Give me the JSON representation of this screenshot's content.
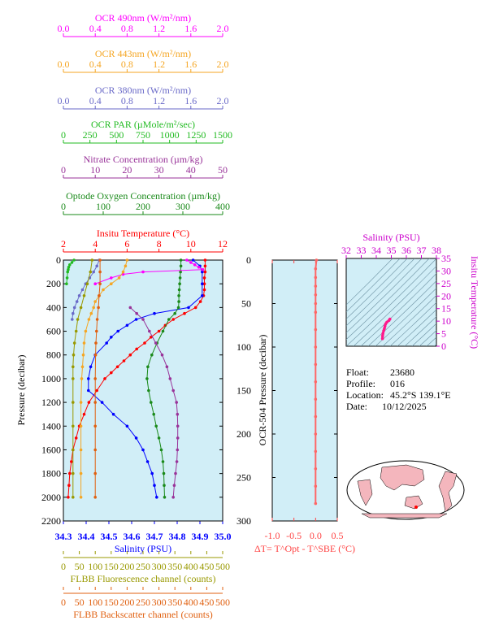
{
  "chart_data": [
    {
      "type": "line",
      "title": "",
      "ylabel": "Pressure (decibar)",
      "y_ticks": [
        "0",
        "200",
        "400",
        "600",
        "800",
        "1000",
        "1200",
        "1400",
        "1600",
        "1800",
        "2000",
        "2200"
      ],
      "ylim": [
        2200,
        0
      ],
      "background": "#d1eef7",
      "grid": false,
      "top_axes": [
        {
          "label": "OCR 490nm (W/m²/nm)",
          "color": "#ff00ff",
          "ticks": [
            "0.0",
            "0.4",
            "0.8",
            "1.2",
            "1.6",
            "2.0"
          ],
          "range": [
            0,
            2
          ]
        },
        {
          "label": "OCR 443nm (W/m²/nm)",
          "color": "#f5a623",
          "ticks": [
            "0.0",
            "0.4",
            "0.8",
            "1.2",
            "1.6",
            "2.0"
          ],
          "range": [
            0,
            2
          ]
        },
        {
          "label": "OCR 380nm (W/m²/nm)",
          "color": "#6a6ac8",
          "ticks": [
            "0.0",
            "0.4",
            "0.8",
            "1.2",
            "1.6",
            "2.0"
          ],
          "range": [
            0,
            2
          ]
        },
        {
          "label": "OCR PAR (µMole/m²/sec)",
          "color": "#22bb22",
          "ticks": [
            "0",
            "250",
            "500",
            "750",
            "1000",
            "1250",
            "1500"
          ],
          "range": [
            0,
            1500
          ]
        },
        {
          "label": "Nitrate Concentration (µm/kg)",
          "color": "#993399",
          "ticks": [
            "0",
            "10",
            "20",
            "30",
            "40",
            "50"
          ],
          "range": [
            0,
            50
          ]
        },
        {
          "label": "Optode Oxygen Concentration (µm/kg)",
          "color": "#1a8a1a",
          "ticks": [
            "0",
            "100",
            "200",
            "300",
            "400"
          ],
          "range": [
            0,
            400
          ]
        },
        {
          "label": "Insitu Temperature (°C)",
          "color": "#ff0000",
          "ticks": [
            "2",
            "4",
            "6",
            "8",
            "10",
            "12"
          ],
          "range": [
            2,
            12
          ]
        }
      ],
      "bottom_axes": [
        {
          "label": "Salinity (PSU)",
          "color": "#0000ff",
          "ticks": [
            "34.3",
            "34.4",
            "34.5",
            "34.6",
            "34.7",
            "34.8",
            "34.9",
            "35.0"
          ],
          "range": [
            34.3,
            35.0
          ]
        },
        {
          "label": "FLBB Fluorescence channel (counts)",
          "color": "#999900",
          "ticks": [
            "0",
            "50",
            "100",
            "150",
            "200",
            "250",
            "300",
            "350",
            "400",
            "450",
            "500"
          ],
          "range": [
            0,
            500
          ]
        },
        {
          "label": "FLBB Backscatter channel (counts)",
          "color": "#e06010",
          "ticks": [
            "0",
            "50",
            "100",
            "150",
            "200",
            "250",
            "300",
            "350",
            "400",
            "450",
            "500"
          ],
          "range": [
            0,
            500
          ]
        }
      ],
      "series": [
        {
          "name": "Insitu Temperature",
          "color": "#ff0000",
          "axis": "Insitu Temperature (°C)",
          "p": [
            0,
            50,
            100,
            150,
            200,
            250,
            300,
            350,
            400,
            450,
            500,
            550,
            600,
            650,
            700,
            750,
            800,
            850,
            900,
            950,
            1000,
            1100,
            1200,
            1300,
            1400,
            1500,
            1600,
            1700,
            1800,
            1900,
            2000
          ],
          "v": [
            10.9,
            10.9,
            10.9,
            10.85,
            10.85,
            10.85,
            10.8,
            10.6,
            10.3,
            9.6,
            8.9,
            8.4,
            8.0,
            7.5,
            7.1,
            6.6,
            6.2,
            5.8,
            5.4,
            5.0,
            4.6,
            4.1,
            3.6,
            3.3,
            3.0,
            2.8,
            2.6,
            2.5,
            2.4,
            2.35,
            2.3
          ]
        },
        {
          "name": "Salinity",
          "color": "#0000ff",
          "axis": "Salinity (PSU)",
          "p": [
            0,
            50,
            100,
            200,
            300,
            400,
            450,
            500,
            550,
            600,
            650,
            700,
            800,
            900,
            1000,
            1100,
            1200,
            1300,
            1400,
            1500,
            1600,
            1700,
            1800,
            1900,
            2000
          ],
          "v": [
            34.87,
            34.9,
            34.91,
            34.91,
            34.91,
            34.85,
            34.7,
            34.62,
            34.58,
            34.54,
            34.51,
            34.49,
            34.44,
            34.42,
            34.41,
            34.41,
            34.47,
            34.52,
            34.58,
            34.62,
            34.65,
            34.67,
            34.69,
            34.7,
            34.71
          ]
        },
        {
          "name": "Optode Oxygen Concentration",
          "color": "#1a8a1a",
          "axis": "Optode Oxygen Concentration (µm/kg)",
          "p": [
            0,
            50,
            100,
            150,
            200,
            250,
            300,
            350,
            400,
            450,
            500,
            600,
            700,
            800,
            900,
            1000,
            1100,
            1200,
            1300,
            1400,
            1500,
            1600,
            1700,
            1800,
            1900,
            2000
          ],
          "v": [
            295,
            295,
            294,
            293,
            292,
            291,
            290,
            290,
            289,
            280,
            265,
            250,
            235,
            222,
            212,
            210,
            214,
            220,
            227,
            233,
            240,
            246,
            250,
            252,
            253,
            254
          ]
        },
        {
          "name": "Nitrate Concentration",
          "color": "#993399",
          "axis": "Nitrate Concentration (µm/kg)",
          "p": [
            400,
            450,
            500,
            600,
            700,
            800,
            900,
            1000,
            1100,
            1200,
            1300,
            1400,
            1500,
            1600,
            1700,
            1800,
            1900,
            2000
          ],
          "v": [
            21,
            23,
            25,
            27,
            29,
            31,
            32.5,
            33.5,
            34.5,
            35.5,
            35.8,
            35.9,
            35.9,
            35.8,
            35.6,
            35.2,
            34.8,
            34.5
          ]
        },
        {
          "name": "OCR PAR",
          "color": "#22bb22",
          "axis": "OCR PAR (µMole/m²/sec)",
          "p": [
            0,
            20,
            40,
            60,
            80,
            100,
            150,
            200
          ],
          "v": [
            100,
            80,
            60,
            50,
            45,
            40,
            35,
            30
          ]
        },
        {
          "name": "OCR 490nm",
          "color": "#ff00ff",
          "axis": "OCR 490nm (W/m²/nm)",
          "p": [
            0,
            20,
            40,
            60,
            80,
            100,
            120,
            150,
            200
          ],
          "v": [
            1.55,
            1.6,
            1.65,
            1.7,
            1.75,
            1.0,
            0.75,
            0.6,
            0.4
          ]
        },
        {
          "name": "OCR 443nm",
          "color": "#f5a623",
          "axis": "OCR 443nm (W/m²/nm)",
          "p": [
            0,
            50,
            100,
            150,
            200,
            250,
            300,
            350,
            400,
            450,
            500,
            600,
            700,
            800,
            900,
            1000,
            1200,
            1400,
            1600,
            1800,
            2000
          ],
          "v": [
            0.8,
            0.78,
            0.75,
            0.7,
            0.6,
            0.5,
            0.45,
            0.4,
            0.38,
            0.35,
            0.32,
            0.28,
            0.26,
            0.25,
            0.24,
            0.23,
            0.22,
            0.22,
            0.22,
            0.22,
            0.22
          ]
        },
        {
          "name": "OCR 380nm",
          "color": "#6a6ac8",
          "axis": "OCR 380nm (W/m²/nm)",
          "p": [
            0,
            50,
            100,
            150,
            200,
            250,
            300,
            350,
            400,
            450,
            500
          ],
          "v": [
            0.45,
            0.42,
            0.38,
            0.33,
            0.28,
            0.24,
            0.2,
            0.17,
            0.14,
            0.12,
            0.11
          ]
        },
        {
          "name": "FLBB Fluorescence channel",
          "color": "#999900",
          "axis": "FLBB Fluorescence channel (counts)",
          "p": [
            0,
            100,
            200,
            300,
            400,
            500,
            600,
            700,
            800,
            900,
            1000,
            1200,
            1400,
            1600,
            1800,
            2000
          ],
          "v": [
            90,
            85,
            75,
            65,
            55,
            45,
            40,
            35,
            32,
            30,
            30,
            30,
            30,
            30,
            30,
            30
          ]
        },
        {
          "name": "FLBB Backscatter channel",
          "color": "#e06010",
          "axis": "FLBB Backscatter channel (counts)",
          "p": [
            0,
            100,
            200,
            300,
            400,
            500,
            600,
            700,
            800,
            1000,
            1200,
            1400,
            1600,
            1800,
            2000
          ],
          "v": [
            115,
            115,
            115,
            112,
            110,
            106,
            104,
            102,
            101,
            100,
            100,
            100,
            100,
            100,
            100
          ]
        }
      ]
    },
    {
      "type": "line",
      "title": "",
      "ylabel": "OCR-504 Pressure (decibar)",
      "y_ticks": [
        "0",
        "50",
        "100",
        "150",
        "200",
        "250",
        "300"
      ],
      "ylim": [
        300,
        0
      ],
      "xlabel": "ΔT= T^Opt - T^SBE (°C)",
      "x_ticks": [
        "-1.0",
        "-0.5",
        "0.0",
        "0.5"
      ],
      "xlim": [
        -1.0,
        0.5
      ],
      "series": [
        {
          "name": "ΔT",
          "color": "#ff6666",
          "p": [
            0,
            10,
            20,
            30,
            40,
            50,
            60,
            80,
            100,
            120,
            140,
            160,
            180,
            200,
            220,
            240,
            260,
            280
          ],
          "v": [
            0.02,
            0.0,
            0.0,
            0.0,
            0.0,
            0.0,
            0.0,
            0.0,
            0.0,
            0.0,
            0.0,
            0.0,
            0.0,
            0.0,
            0.0,
            0.0,
            0.0,
            0.0
          ]
        }
      ]
    },
    {
      "type": "scatter",
      "title": "",
      "xlabel": "Salinity (PSU)",
      "x_ticks": [
        "32",
        "33",
        "34",
        "35",
        "36",
        "37",
        "38"
      ],
      "xlim": [
        32,
        38
      ],
      "ylabel": "Insitu Temperature (°C)",
      "y_ticks": [
        "0",
        "5",
        "10",
        "15",
        "20",
        "25",
        "30",
        "35"
      ],
      "ylim": [
        0,
        35
      ],
      "series": [
        {
          "name": "T-S",
          "color": "#ff1a8c",
          "x": [
            34.41,
            34.42,
            34.44,
            34.49,
            34.54,
            34.58,
            34.62,
            34.7,
            34.85,
            34.91
          ],
          "y": [
            3.0,
            4.1,
            5.0,
            6.2,
            7.1,
            8.0,
            8.9,
            9.6,
            10.3,
            10.85
          ]
        }
      ]
    }
  ],
  "info": {
    "float_label": "Float:",
    "float_value": "23680",
    "profile_label": "Profile:",
    "profile_value": "016",
    "location_label": "Location:",
    "location_value": "45.2°S  139.1°E",
    "date_label": "Date:",
    "date_value": "10/12/2025"
  }
}
